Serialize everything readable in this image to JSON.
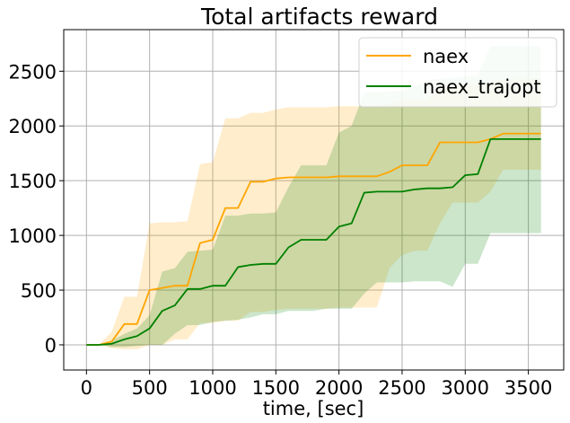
{
  "chart_data": {
    "type": "line",
    "title": "Total artifacts reward",
    "xlabel": "time, [sec]",
    "ylabel": "",
    "xlim": [
      -180,
      3780
    ],
    "ylim": [
      -230,
      2880
    ],
    "xticks": [
      0,
      500,
      1000,
      1500,
      2000,
      2500,
      3000,
      3500
    ],
    "yticks": [
      0,
      500,
      1000,
      1500,
      2000,
      2500
    ],
    "grid": true,
    "legend_position": "top-right",
    "series": [
      {
        "name": "naex",
        "color": "#ffa500",
        "fill_color": "#ffa500",
        "x": [
          0,
          100,
          200,
          300,
          400,
          500,
          600,
          700,
          800,
          900,
          1000,
          1100,
          1200,
          1300,
          1400,
          1500,
          1600,
          1700,
          1800,
          1900,
          2000,
          2100,
          2200,
          2300,
          2400,
          2500,
          2600,
          2700,
          2800,
          2900,
          3000,
          3100,
          3200,
          3300,
          3400,
          3500,
          3600
        ],
        "values": [
          0,
          0,
          30,
          190,
          190,
          500,
          520,
          540,
          540,
          930,
          960,
          1250,
          1250,
          1490,
          1490,
          1520,
          1530,
          1530,
          1530,
          1530,
          1540,
          1540,
          1540,
          1540,
          1580,
          1640,
          1640,
          1640,
          1850,
          1850,
          1850,
          1850,
          1880,
          1930,
          1930,
          1930,
          1930
        ],
        "lower": [
          0,
          0,
          -30,
          -40,
          -40,
          0,
          0,
          50,
          50,
          200,
          200,
          220,
          220,
          300,
          300,
          320,
          330,
          330,
          330,
          330,
          340,
          340,
          340,
          340,
          700,
          820,
          860,
          860,
          1110,
          1300,
          1300,
          1300,
          1400,
          1600,
          1600,
          1600,
          1600
        ],
        "upper": [
          0,
          0,
          120,
          440,
          440,
          1110,
          1120,
          1120,
          1130,
          1650,
          1670,
          2070,
          2070,
          2120,
          2120,
          2150,
          2170,
          2170,
          2170,
          2170,
          2180,
          2180,
          2180,
          2180,
          2200,
          2240,
          2240,
          2240,
          2360,
          2360,
          2380,
          2380,
          2400,
          2430,
          2430,
          2430,
          2430
        ]
      },
      {
        "name": "naex_trajopt",
        "color": "#008000",
        "fill_color": "#008000",
        "x": [
          0,
          100,
          200,
          300,
          400,
          500,
          600,
          700,
          800,
          900,
          1000,
          1100,
          1200,
          1300,
          1400,
          1500,
          1600,
          1700,
          1800,
          1900,
          2000,
          2100,
          2200,
          2300,
          2400,
          2500,
          2600,
          2700,
          2800,
          2900,
          3000,
          3100,
          3200,
          3300,
          3400,
          3500,
          3600
        ],
        "values": [
          0,
          0,
          10,
          50,
          80,
          150,
          310,
          360,
          510,
          510,
          540,
          540,
          710,
          730,
          740,
          740,
          890,
          960,
          960,
          960,
          1080,
          1110,
          1390,
          1400,
          1400,
          1400,
          1420,
          1430,
          1430,
          1440,
          1550,
          1560,
          1880,
          1880,
          1880,
          1880,
          1880
        ],
        "lower": [
          0,
          0,
          -20,
          -20,
          -10,
          0,
          0,
          100,
          180,
          180,
          210,
          220,
          230,
          250,
          280,
          280,
          310,
          310,
          310,
          330,
          330,
          330,
          470,
          570,
          570,
          570,
          580,
          580,
          580,
          530,
          740,
          740,
          1020,
          1020,
          1020,
          1020,
          1020
        ],
        "upper": [
          0,
          0,
          40,
          100,
          150,
          270,
          670,
          700,
          850,
          860,
          870,
          1180,
          1180,
          1200,
          1200,
          1210,
          1440,
          1640,
          1640,
          1640,
          1940,
          2000,
          2310,
          2310,
          2320,
          2320,
          2360,
          2420,
          2430,
          2440,
          2450,
          2460,
          2730,
          2730,
          2730,
          2730,
          2730
        ]
      }
    ]
  }
}
